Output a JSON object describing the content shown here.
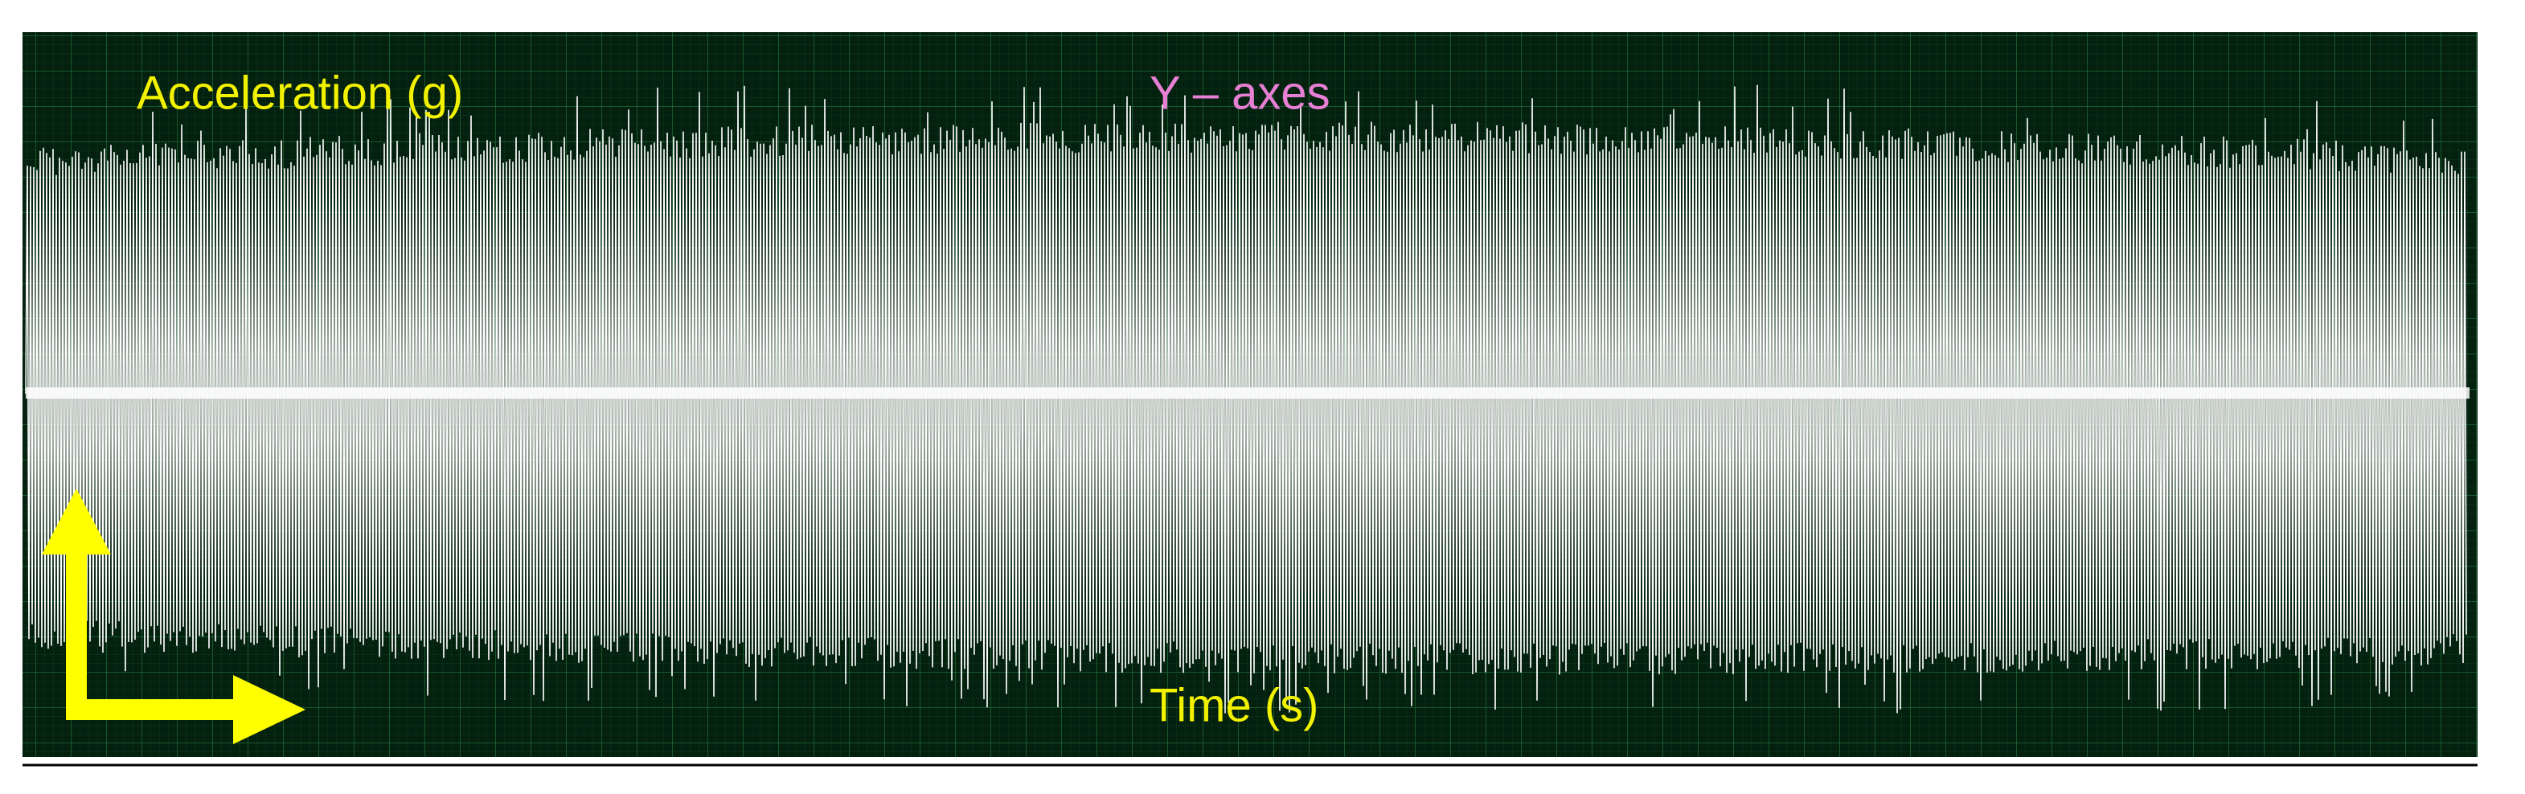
{
  "labels": {
    "y_axis": "Acceleration (g)",
    "title": "Y – axes",
    "x_axis": "Time (s)"
  }
}
